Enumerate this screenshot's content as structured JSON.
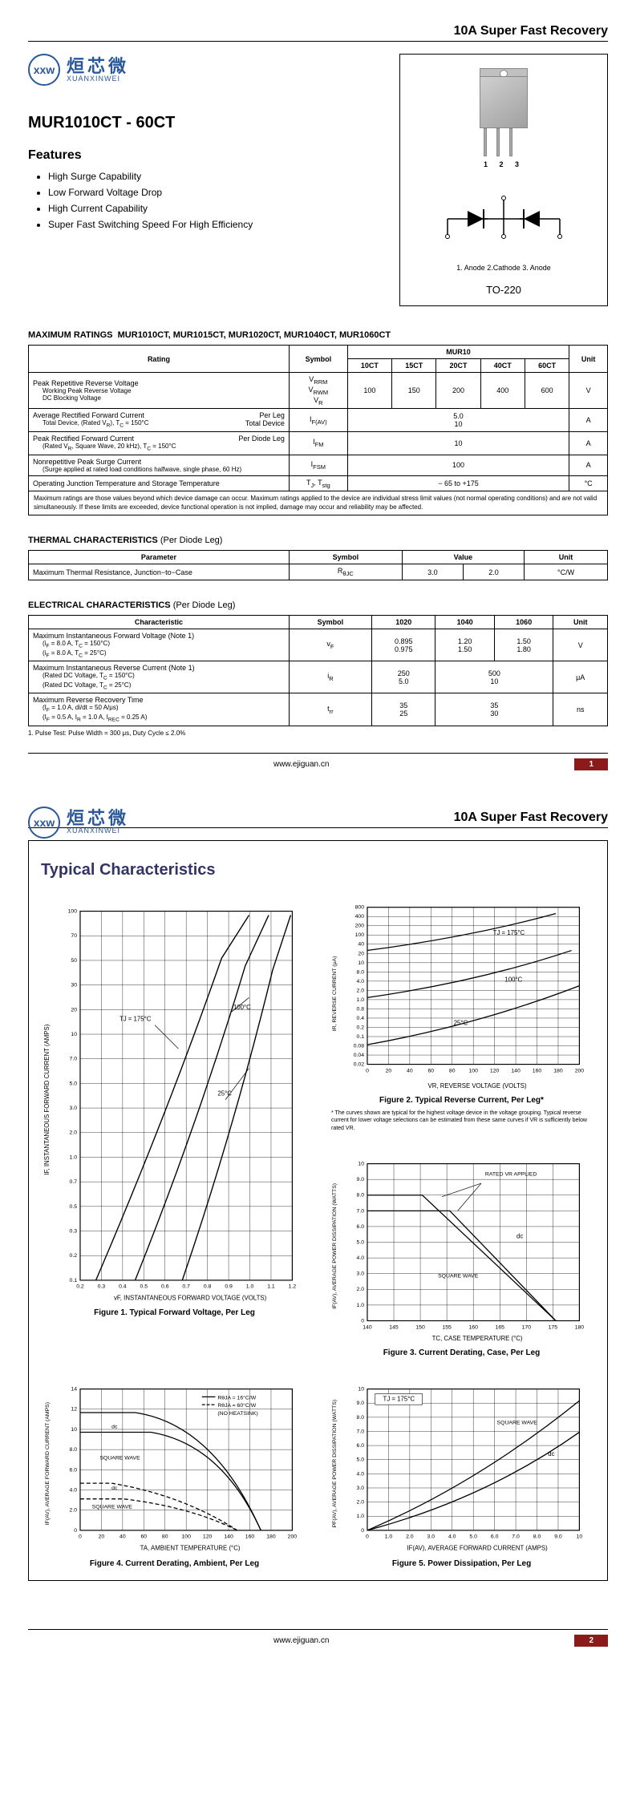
{
  "header": {
    "title": "10A Super Fast Recovery"
  },
  "logo": {
    "cn": "烜芯微",
    "en": "XUANXINWEI",
    "mark": "xxw"
  },
  "part": {
    "title": "MUR1010CT - 60CT"
  },
  "features": {
    "heading": "Features",
    "items": [
      "High Surge Capability",
      "Low Forward Voltage Drop",
      "High Current Capability",
      "Super Fast Switching Speed For High Efficiency"
    ]
  },
  "package": {
    "pins": "1 2 3",
    "pin_labels": "1. Anode   2.Cathode   3. Anode",
    "name": "TO-220"
  },
  "max_ratings": {
    "heading": "MAXIMUM RATINGS",
    "models": "MUR1010CT, MUR1015CT, MUR1020CT, MUR1040CT, MUR1060CT",
    "group": "MUR10",
    "cols": [
      "10CT",
      "15CT",
      "20CT",
      "40CT",
      "60CT"
    ],
    "head": {
      "rating": "Rating",
      "symbol": "Symbol",
      "unit": "Unit"
    },
    "rows": [
      {
        "rating": "Peak Repetitive Reverse Voltage",
        "sub": [
          "Working Peak Reverse Voltage",
          "DC Blocking Voltage"
        ],
        "symbol": "V<sub>RRM</sub><br>V<sub>RWM</sub><br>V<sub>R</sub>",
        "vals": [
          "100",
          "150",
          "200",
          "400",
          "600"
        ],
        "unit": "V"
      },
      {
        "rating": "Average Rectified Forward Current",
        "right": "Per Leg",
        "sub": [
          "Total Device, (Rated V<sub>R</sub>), T<sub>C</sub> = 150°C"
        ],
        "right2": "Total Device",
        "symbol": "I<sub>F(AV)</sub>",
        "span": "5.0<br>10",
        "unit": "A"
      },
      {
        "rating": "Peak Rectified Forward Current",
        "right": "Per Diode Leg",
        "sub": [
          "(Rated V<sub>R</sub>, Square Wave, 20 kHz), T<sub>C</sub> = 150°C"
        ],
        "symbol": "I<sub>FM</sub>",
        "span": "10",
        "unit": "A"
      },
      {
        "rating": "Nonrepetitive Peak Surge Current",
        "sub": [
          "(Surge applied at rated load conditions halfwave, single phase, 60 Hz)"
        ],
        "symbol": "I<sub>FSM</sub>",
        "span": "100",
        "unit": "A"
      },
      {
        "rating": "Operating Junction Temperature and Storage Temperature",
        "symbol": "T<sub>J</sub>, T<sub>stg</sub>",
        "span": "− 65 to +175",
        "unit": "°C"
      }
    ],
    "note": "Maximum ratings are those values beyond which device damage can occur. Maximum ratings applied to the device are individual stress limit values (not normal operating conditions) and are not valid simultaneously. If these limits are exceeded, device functional operation is not implied, damage may occur and reliability may be affected."
  },
  "thermal": {
    "heading": "THERMAL CHARACTERISTICS",
    "per": "(Per Diode Leg)",
    "head": {
      "param": "Parameter",
      "symbol": "Symbol",
      "value": "Value",
      "unit": "Unit"
    },
    "row": {
      "param": "Maximum Thermal Resistance, Junction−to−Case",
      "symbol": "R<sub>θJC</sub>",
      "v1": "3.0",
      "v2": "2.0",
      "unit": "°C/W"
    }
  },
  "electrical": {
    "heading": "ELECTRICAL CHARACTERISTICS",
    "per": "(Per Diode Leg)",
    "head": {
      "char": "Characteristic",
      "symbol": "Symbol",
      "unit": "Unit"
    },
    "cols": [
      "1020",
      "1040",
      "1060"
    ],
    "rows": [
      {
        "char": "Maximum Instantaneous Forward Voltage (Note 1)",
        "sub": [
          "(i<sub>F</sub> = 8.0 A, T<sub>C</sub> = 150°C)",
          "(i<sub>F</sub> = 8.0 A, T<sub>C</sub> = 25°C)"
        ],
        "symbol": "v<sub>F</sub>",
        "v": [
          "0.895<br>0.975",
          "1.20<br>1.50",
          "1.50<br>1.80"
        ],
        "unit": "V"
      },
      {
        "char": "Maximum Instantaneous Reverse Current (Note 1)",
        "sub": [
          "(Rated DC Voltage, T<sub>C</sub> = 150°C)",
          "(Rated DC Voltage, T<sub>C</sub> = 25°C)"
        ],
        "symbol": "i<sub>R</sub>",
        "v": [
          "250<br>5.0",
          "500<br>10",
          ""
        ],
        "colspan2": true,
        "unit": "μA"
      },
      {
        "char": "Maximum Reverse Recovery Time",
        "sub": [
          "(I<sub>F</sub> = 1.0 A, di/dt = 50 A/μs)",
          "(I<sub>F</sub> = 0.5 A, I<sub>R</sub> = 1.0 A, I<sub>REC</sub> = 0.25 A)"
        ],
        "symbol": "t<sub>rr</sub>",
        "v": [
          "35<br>25",
          "35<br>30",
          ""
        ],
        "colspan2": true,
        "unit": "ns"
      }
    ],
    "note": "1.  Pulse Test: Pulse Width = 300 μs, Duty Cycle ≤ 2.0%"
  },
  "footer": {
    "url": "www.ejiguan.cn",
    "p1": "1",
    "p2": "2"
  },
  "typ": {
    "heading": "Typical Characteristics"
  },
  "fig1": {
    "title": "Figure 1. Typical Forward Voltage, Per Leg",
    "xlabel": "vF, INSTANTANEOUS FORWARD VOLTAGE (VOLTS)",
    "ylabel": "IF, INSTANTANEOUS FORWARD CURRENT (AMPS)",
    "xticks": [
      "0.2",
      "0.3",
      "0.4",
      "0.5",
      "0.6",
      "0.7",
      "0.8",
      "0.9",
      "1.0",
      "1.1",
      "1.2"
    ],
    "yticks": [
      "0.1",
      "0.2",
      "0.3",
      "0.5",
      "0.7",
      "1.0",
      "2.0",
      "3.0",
      "5.0",
      "7.0",
      "10",
      "20",
      "30",
      "50",
      "70",
      "100"
    ],
    "labels": {
      "a": "TJ = 175°C",
      "b": "100°C",
      "c": "25°C"
    }
  },
  "fig2": {
    "title": "Figure 2. Typical Reverse Current, Per Leg*",
    "xlabel": "VR, REVERSE VOLTAGE (VOLTS)",
    "ylabel": "IR, REVERSE CURRENT (μA)",
    "xticks": [
      "0",
      "20",
      "40",
      "60",
      "80",
      "100",
      "120",
      "140",
      "160",
      "180",
      "200"
    ],
    "yticks": [
      "0.02",
      "0.04",
      "0.08",
      "0.1",
      "0.2",
      "0.4",
      "0.8",
      "1.0",
      "2.0",
      "4.0",
      "8.0",
      "10",
      "20",
      "40",
      "100",
      "200",
      "400",
      "800"
    ],
    "labels": {
      "a": "TJ = 175°C",
      "b": "100°C",
      "c": "25°C"
    },
    "note": "* The curves shown are typical for the highest voltage device in the voltage grouping. Typical reverse current for lower voltage selections can be estimated from these same curves if VR is sufficiently below rated VR."
  },
  "fig3": {
    "title": "Figure 3. Current Derating, Case, Per Leg",
    "xlabel": "TC, CASE TEMPERATURE (°C)",
    "ylabel": "IF(AV), AVERAGE POWER DISSIPATION (WATTS)",
    "xticks": [
      "140",
      "145",
      "150",
      "155",
      "160",
      "165",
      "170",
      "175",
      "180"
    ],
    "yticks": [
      "0",
      "1.0",
      "2.0",
      "3.0",
      "4.0",
      "5.0",
      "6.0",
      "7.0",
      "8.0",
      "9.0",
      "10"
    ],
    "labels": {
      "a": "RATED VR APPLIED",
      "b": "dc",
      "c": "SQUARE WAVE"
    }
  },
  "fig4": {
    "title": "Figure 4. Current Derating, Ambient, Per Leg",
    "xlabel": "TA, AMBIENT TEMPERATURE (°C)",
    "ylabel": "IF(AV), AVERAGE FORWARD CURRENT (AMPS)",
    "xticks": [
      "0",
      "20",
      "40",
      "60",
      "80",
      "100",
      "120",
      "140",
      "160",
      "180",
      "200"
    ],
    "yticks": [
      "0",
      "2.0",
      "4.0",
      "6.0",
      "8.0",
      "10",
      "12",
      "14"
    ],
    "labels": {
      "a": "RθJA = 16°C/W",
      "b": "RθJA = 60°C/W",
      "c": "(NO HEATSINK)",
      "d": "dc",
      "e": "SQUARE WAVE"
    }
  },
  "fig5": {
    "title": "Figure 5. Power Dissipation, Per Leg",
    "xlabel": "IF(AV), AVERAGE FORWARD CURRENT (AMPS)",
    "ylabel": "PF(AV), AVERAGE POWER DISSIPATION (WATTS)",
    "xticks": [
      "0",
      "1.0",
      "2.0",
      "3.0",
      "4.0",
      "5.0",
      "6.0",
      "7.0",
      "8.0",
      "9.0",
      "10"
    ],
    "yticks": [
      "0",
      "1.0",
      "2.0",
      "3.0",
      "4.0",
      "5.0",
      "6.0",
      "7.0",
      "8.0",
      "9.0",
      "10"
    ],
    "labels": {
      "a": "TJ = 175°C",
      "b": "SQUARE WAVE",
      "c": "dc"
    }
  }
}
